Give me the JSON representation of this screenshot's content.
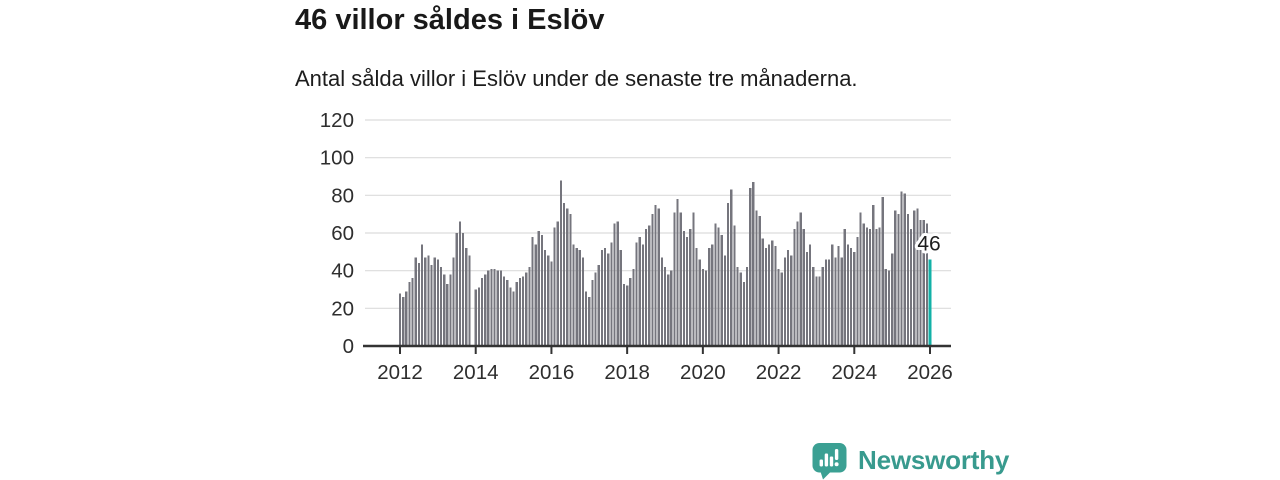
{
  "header": {
    "title": "46 villor såldes i Eslöv",
    "subtitle": "Antal sålda villor i Eslöv under de senaste tre månaderna."
  },
  "chart_data": {
    "type": "bar",
    "title": "46 villor såldes i Eslöv",
    "subtitle": "Antal sålda villor i Eslöv under de senaste tre månaderna.",
    "x_start": {
      "year": 2012,
      "month": 1
    },
    "x_end": {
      "year": 2026,
      "month": 1
    },
    "x_frequency": "monthly",
    "values": [
      28,
      26,
      29,
      34,
      36,
      47,
      44,
      54,
      47,
      48,
      43,
      47,
      46,
      42,
      38,
      33,
      38,
      47,
      60,
      66,
      60,
      52,
      48,
      null,
      30,
      31,
      36,
      38,
      40,
      41,
      41,
      40,
      40,
      37,
      35,
      31,
      29,
      34,
      36,
      37,
      39,
      42,
      58,
      54,
      61,
      59,
      51,
      48,
      45,
      63,
      66,
      88,
      76,
      73,
      70,
      54,
      52,
      51,
      47,
      29,
      26,
      35,
      39,
      43,
      51,
      52,
      49,
      55,
      65,
      66,
      51,
      33,
      32,
      36,
      41,
      55,
      58,
      54,
      62,
      64,
      70,
      75,
      73,
      47,
      42,
      38,
      40,
      71,
      78,
      71,
      61,
      58,
      62,
      71,
      52,
      46,
      41,
      40,
      52,
      54,
      65,
      63,
      59,
      48,
      76,
      83,
      64,
      42,
      39,
      34,
      42,
      84,
      87,
      72,
      69,
      57,
      52,
      54,
      56,
      53,
      41,
      39,
      47,
      51,
      48,
      62,
      66,
      71,
      62,
      50,
      54,
      42,
      37,
      37,
      42,
      46,
      46,
      54,
      47,
      53,
      47,
      62,
      54,
      52,
      50,
      58,
      71,
      65,
      63,
      62,
      75,
      62,
      63,
      79,
      41,
      40,
      49,
      72,
      70,
      82,
      81,
      70,
      62,
      72,
      73,
      67,
      67,
      65,
      46
    ],
    "highlight": {
      "index": 168,
      "value": 46,
      "label": "46",
      "color": "#12b1a7"
    },
    "yticks": [
      0,
      20,
      40,
      60,
      80,
      100,
      120
    ],
    "ylim": [
      0,
      120
    ],
    "xticks": [
      2012,
      2014,
      2016,
      2018,
      2020,
      2022,
      2024,
      2026
    ],
    "grid": true,
    "legend": "none",
    "bar_color": "#75757d",
    "grid_color": "#dcdcdc",
    "axis_color": "#333333",
    "label_color": "#2e2e2e",
    "annotation_color": "#1d1d1d"
  },
  "footer": {
    "brand": "Newsworthy",
    "brand_color": "#389a8e",
    "icon": "speech-bubble-bar-chart-icon",
    "icon_color": "#3ba093"
  }
}
